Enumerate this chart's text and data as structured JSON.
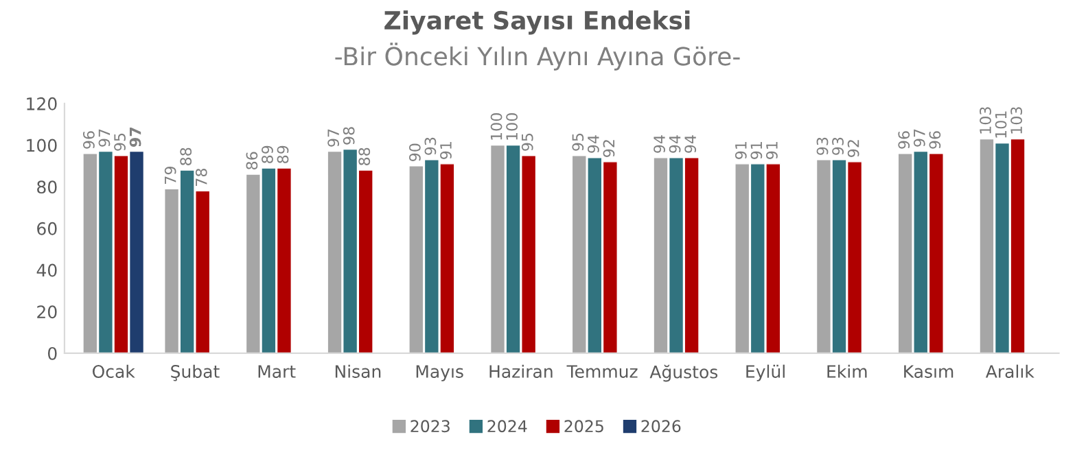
{
  "chart_data": {
    "type": "bar",
    "title": "Ziyaret Sayısı Endeksi",
    "subtitle": "-Bir Önceki Yılın Aynı Ayına Göre-",
    "categories": [
      "Ocak",
      "Şubat",
      "Mart",
      "Nisan",
      "Mayıs",
      "Haziran",
      "Temmuz",
      "Ağustos",
      "Eylül",
      "Ekim",
      "Kasım",
      "Aralık"
    ],
    "series": [
      {
        "name": "2023",
        "color": "#a6a6a6",
        "values": [
          96,
          79,
          86,
          97,
          90,
          100,
          95,
          94,
          91,
          93,
          96,
          103
        ]
      },
      {
        "name": "2024",
        "color": "#31737f",
        "values": [
          97,
          88,
          89,
          98,
          93,
          100,
          94,
          94,
          91,
          93,
          97,
          101
        ]
      },
      {
        "name": "2025",
        "color": "#b00000",
        "values": [
          95,
          78,
          89,
          88,
          91,
          95,
          92,
          94,
          91,
          92,
          96,
          103
        ]
      },
      {
        "name": "2026",
        "color": "#1f3d6e",
        "values": [
          97,
          null,
          null,
          null,
          null,
          null,
          null,
          null,
          null,
          null,
          null,
          null
        ]
      }
    ],
    "ylim": [
      0,
      120
    ],
    "yticks": [
      0,
      20,
      40,
      60,
      80,
      100,
      120
    ],
    "grid": false,
    "legend": "bottom",
    "data_labels": true
  }
}
